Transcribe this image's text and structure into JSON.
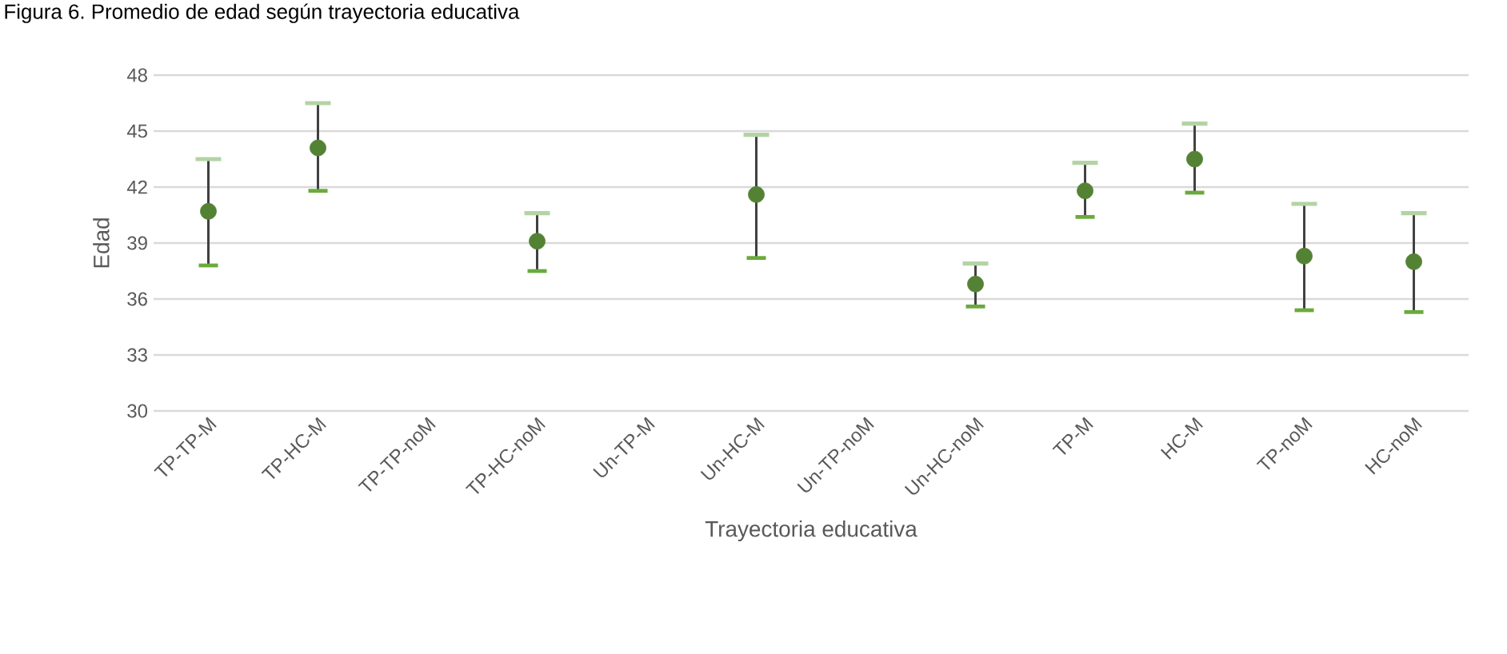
{
  "chart_data": {
    "type": "scatter",
    "title": "Figura 6. Promedio de edad según trayectoria educativa",
    "xlabel": "Trayectoria educativa",
    "ylabel": "Edad",
    "categories": [
      "TP-TP-M",
      "TP-HC-M",
      "TP-TP-noM",
      "TP-HC-noM",
      "Un-TP-M",
      "Un-HC-M",
      "Un-TP-noM",
      "Un-HC-noM",
      "TP-M",
      "HC-M",
      "TP-noM",
      "HC-noM"
    ],
    "values": [
      40.7,
      44.1,
      null,
      39.1,
      null,
      41.6,
      null,
      36.8,
      41.8,
      43.5,
      38.3,
      38.0
    ],
    "errors": [
      [
        37.8,
        43.5
      ],
      [
        41.8,
        46.5
      ],
      null,
      [
        37.5,
        40.6
      ],
      null,
      [
        38.2,
        44.8
      ],
      null,
      [
        35.6,
        37.9
      ],
      [
        40.4,
        43.3
      ],
      [
        41.7,
        45.4
      ],
      [
        35.4,
        41.1
      ],
      [
        35.3,
        40.6
      ]
    ],
    "color": "#548235",
    "ylim": [
      30,
      48
    ],
    "yticks": [
      30,
      33,
      36,
      39,
      42,
      45,
      48
    ],
    "grid": "y",
    "marker": "circle"
  }
}
